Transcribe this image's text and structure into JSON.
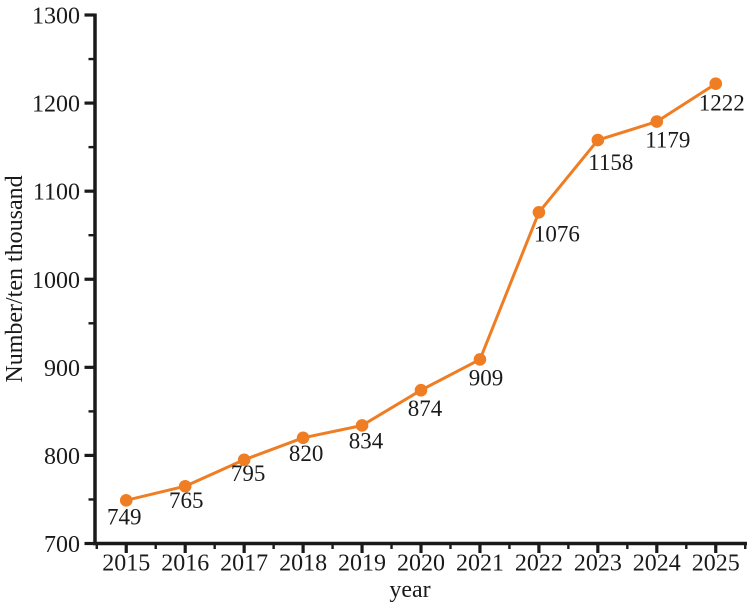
{
  "chart_data": {
    "type": "line",
    "title": "",
    "xlabel": "year",
    "ylabel": "Number/ten thousand",
    "x": [
      2015,
      2016,
      2017,
      2018,
      2019,
      2020,
      2021,
      2022,
      2023,
      2024,
      2025
    ],
    "values": [
      749,
      765,
      795,
      820,
      834,
      874,
      909,
      1076,
      1158,
      1179,
      1222
    ],
    "point_labels": [
      "749",
      "765",
      "795",
      "820",
      "834",
      "874",
      "909",
      "1076",
      "1158",
      "1179",
      "1222"
    ],
    "x_tick_labels": [
      "2015",
      "2016",
      "2017",
      "2018",
      "2019",
      "2020",
      "2021",
      "2022",
      "2023",
      "2024",
      "2025"
    ],
    "y_tick_labels": [
      "700",
      "800",
      "900",
      "1000",
      "1100",
      "1200",
      "1300"
    ],
    "y_major_ticks": [
      700,
      800,
      900,
      1000,
      1100,
      1200,
      1300
    ],
    "y_minor_ticks": [
      750,
      850,
      950,
      1050,
      1150,
      1250
    ],
    "x_minor_ticks": [
      2014.5,
      2015.5,
      2016.5,
      2017.5,
      2018.5,
      2019.5,
      2020.5,
      2021.5,
      2022.5,
      2023.5,
      2024.5,
      2025.5
    ],
    "ylim": [
      700,
      1300
    ],
    "xlim": [
      2014.47,
      2025.53
    ],
    "grid": false,
    "legend": "none",
    "data_labels_visible": true,
    "colors": {
      "line": "#EF7D23",
      "marker": "#EF7D23",
      "axis": "#1a1a1a",
      "text": "#1a1a1a",
      "background": "#ffffff"
    }
  }
}
